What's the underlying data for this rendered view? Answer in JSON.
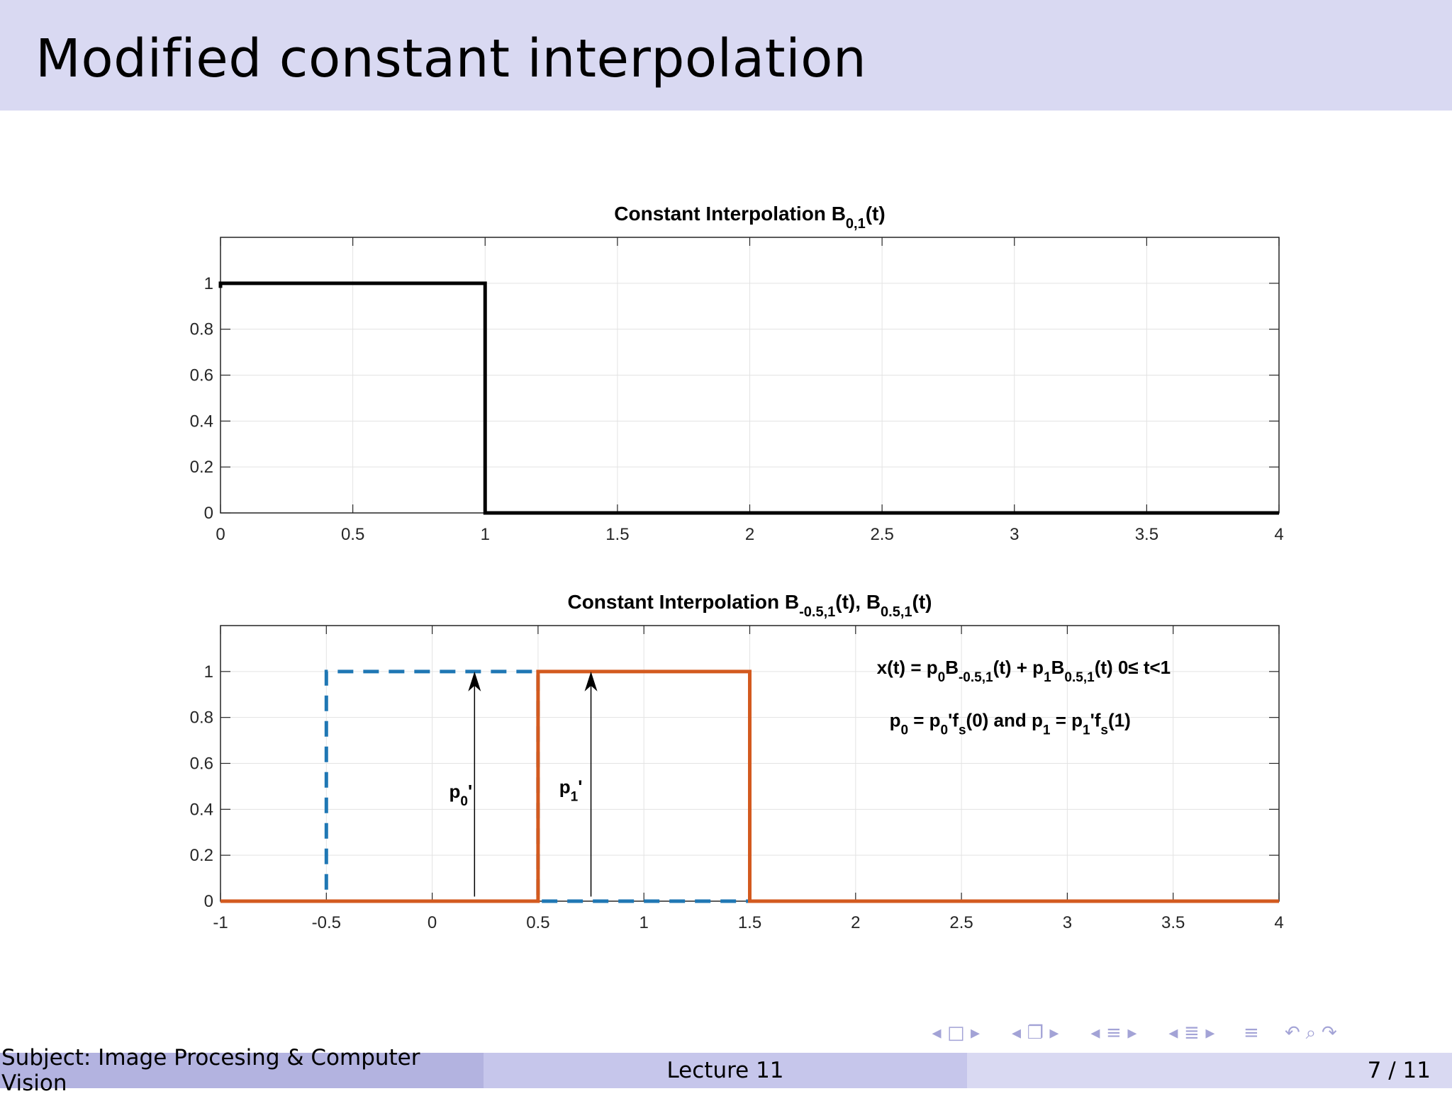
{
  "slide": {
    "title": "Modified constant interpolation"
  },
  "footer": {
    "subject": "Subject: Image Procesing & Computer Vision",
    "lecture": "Lecture 11",
    "page": "7 / 11"
  },
  "navigation": {
    "icons": [
      "nav-left-arrow-icon",
      "frame-icon",
      "nav-right-arrow-icon",
      "nav-left-arrow-icon",
      "subsection-icon",
      "nav-right-arrow-icon",
      "nav-left-arrow-icon",
      "section-icon",
      "nav-right-arrow-icon",
      "nav-left-arrow-icon",
      "presentation-icon",
      "nav-right-arrow-icon",
      "toc-icon",
      "back-icon",
      "search-icon",
      "zoom-icon"
    ],
    "color": "#a3a3d6"
  },
  "chart_data": [
    {
      "type": "line",
      "title_main": "Constant Interpolation  B",
      "title_sub": "0,1",
      "title_tail": "(t)",
      "xlim": [
        0,
        4
      ],
      "ylim": [
        0,
        1.2
      ],
      "xticks": [
        "0",
        "0.5",
        "1",
        "1.5",
        "2",
        "2.5",
        "3",
        "3.5",
        "4"
      ],
      "yticks": [
        "0",
        "0.2",
        "0.4",
        "0.6",
        "0.8",
        "1"
      ],
      "grid": true,
      "series": [
        {
          "style": "solid",
          "color": "#000000",
          "x": [
            0,
            0,
            1,
            1,
            4
          ],
          "y": [
            0.98,
            1,
            1,
            0,
            0
          ]
        }
      ]
    },
    {
      "type": "line",
      "title_parts": [
        {
          "t": "Constant Interpolation B",
          "sub": "-0.5,1"
        },
        {
          "t": "(t),  B",
          "sub": "0.5,1"
        },
        {
          "t": "(t)",
          "sub": ""
        }
      ],
      "xlim": [
        -1,
        4
      ],
      "ylim": [
        0,
        1.2
      ],
      "xticks": [
        "-1",
        "-0.5",
        "0",
        "0.5",
        "1",
        "1.5",
        "2",
        "2.5",
        "3",
        "3.5",
        "4"
      ],
      "yticks": [
        "0",
        "0.2",
        "0.4",
        "0.6",
        "0.8",
        "1"
      ],
      "grid": true,
      "series": [
        {
          "style": "dashed",
          "color": "#1f77b4",
          "x": [
            -0.5,
            -0.5,
            0.5,
            0.5,
            1.5
          ],
          "y": [
            0.05,
            1,
            1,
            0,
            0
          ]
        },
        {
          "style": "solid",
          "color": "#d35a1f",
          "x": [
            -1,
            0.5,
            0.5,
            1.5,
            1.5,
            4
          ],
          "y": [
            0,
            0,
            1,
            1,
            0,
            0
          ]
        }
      ],
      "arrows": [
        {
          "x": 0.2,
          "y_from": 0.02,
          "y_to": 1
        },
        {
          "x": 0.75,
          "y_from": 0.02,
          "y_to": 1
        }
      ],
      "annotations": [
        {
          "x": 0.08,
          "y": 0.45,
          "parts": [
            {
              "t": "p",
              "sub": "0"
            },
            {
              "t": "'",
              "sub": ""
            }
          ]
        },
        {
          "x": 0.6,
          "y": 0.47,
          "parts": [
            {
              "t": "p",
              "sub": "1"
            },
            {
              "t": "'",
              "sub": ""
            }
          ]
        },
        {
          "x": 2.1,
          "y": 0.99,
          "parts": [
            {
              "t": "x(t) = p",
              "sub": "0"
            },
            {
              "t": "B",
              "sub": "-0.5,1"
            },
            {
              "t": "(t) + p",
              "sub": "1"
            },
            {
              "t": "B",
              "sub": "0.5,1"
            },
            {
              "t": "(t)  0≤ t<1",
              "sub": ""
            }
          ]
        },
        {
          "x": 2.16,
          "y": 0.76,
          "parts": [
            {
              "t": "p",
              "sub": "0"
            },
            {
              "t": " = p",
              "sub": "0"
            },
            {
              "t": "'f",
              "sub": "s"
            },
            {
              "t": "(0)  and p",
              "sub": "1"
            },
            {
              "t": " = p",
              "sub": "1"
            },
            {
              "t": "'f",
              "sub": "s"
            },
            {
              "t": "(1)",
              "sub": ""
            }
          ]
        }
      ]
    }
  ]
}
